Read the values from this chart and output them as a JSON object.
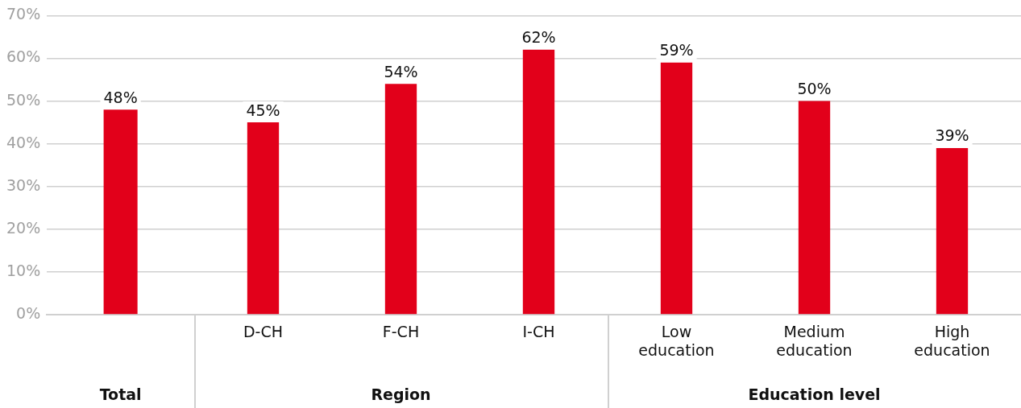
{
  "chart_data": [
    {
      "type": "bar",
      "xlabel": "Total",
      "categories": [
        null
      ],
      "series": [
        {
          "color": "#e2001a",
          "values": [
            48
          ],
          "value_labels": [
            "48%"
          ]
        }
      ],
      "ylim": [
        0,
        70
      ],
      "yticks": [
        {
          "value": 0,
          "label": "0%"
        },
        {
          "value": 10,
          "label": "10%"
        },
        {
          "value": 20,
          "label": "20%"
        },
        {
          "value": 30,
          "label": "30%"
        },
        {
          "value": 40,
          "label": "40%"
        },
        {
          "value": 50,
          "label": "50%"
        },
        {
          "value": 60,
          "label": "60%"
        },
        {
          "value": 70,
          "label": "70%"
        }
      ],
      "grid": "y",
      "legend": false
    },
    {
      "type": "bar",
      "xlabel": "Region",
      "categories": [
        "D-CH",
        "F-CH",
        "I-CH"
      ],
      "series": [
        {
          "color": "#e2001a",
          "values": [
            45,
            54,
            62
          ],
          "value_labels": [
            "45%",
            "54%",
            "62%"
          ]
        }
      ],
      "ylim": [
        0,
        70
      ],
      "yticks": [
        {
          "value": 0,
          "label": null
        },
        {
          "value": 10,
          "label": null
        },
        {
          "value": 20,
          "label": null
        },
        {
          "value": 30,
          "label": null
        },
        {
          "value": 40,
          "label": null
        },
        {
          "value": 50,
          "label": null
        },
        {
          "value": 60,
          "label": null
        },
        {
          "value": 70,
          "label": null
        }
      ],
      "grid": "y",
      "legend": false,
      "tick_labels": "x"
    },
    {
      "type": "bar",
      "xlabel": "Education level",
      "categories": [
        "Low education",
        "Medium education",
        "High education"
      ],
      "series": [
        {
          "color": "#e2001a",
          "values": [
            59,
            50,
            39
          ],
          "value_labels": [
            "59%",
            "50%",
            "39%"
          ]
        }
      ],
      "ylim": [
        0,
        70
      ],
      "yticks": [
        {
          "value": 0,
          "label": null
        },
        {
          "value": 10,
          "label": null
        },
        {
          "value": 20,
          "label": null
        },
        {
          "value": 30,
          "label": null
        },
        {
          "value": 40,
          "label": null
        },
        {
          "value": 50,
          "label": null
        },
        {
          "value": 60,
          "label": null
        },
        {
          "value": 70,
          "label": null
        }
      ],
      "grid": "y",
      "legend": false,
      "tick_labels": "x"
    }
  ]
}
